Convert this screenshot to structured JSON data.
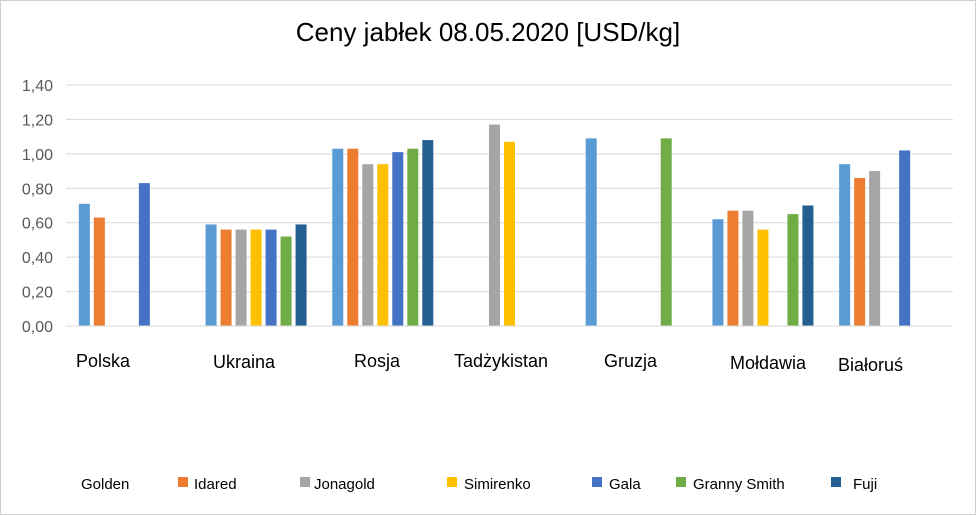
{
  "chart_data": {
    "type": "bar",
    "title": "Ceny jabłek 08.05.2020 [USD/kg]",
    "xlabel": "",
    "ylabel": "",
    "ylim": [
      0,
      1.4
    ],
    "yticks": [
      "0,00",
      "0,20",
      "0,40",
      "0,60",
      "0,80",
      "1,00",
      "1,20",
      "1,40"
    ],
    "grid": true,
    "legend_position": "bottom",
    "categories": [
      "Polska",
      "Ukraina",
      "Rosja",
      "Tadżykistan",
      "Gruzja",
      "Mołdawia",
      "Białoruś"
    ],
    "series": [
      {
        "name": "Golden",
        "color": "#5b9bd5",
        "values": [
          0.71,
          0.59,
          1.03,
          null,
          1.09,
          0.62,
          0.94
        ]
      },
      {
        "name": "Idared",
        "color": "#ed7d31",
        "values": [
          0.63,
          0.56,
          1.03,
          null,
          null,
          0.67,
          0.86
        ]
      },
      {
        "name": "Jonagold",
        "color": "#a5a5a5",
        "values": [
          null,
          0.56,
          0.94,
          1.17,
          null,
          0.67,
          0.9
        ]
      },
      {
        "name": "Simirenko",
        "color": "#ffc000",
        "values": [
          null,
          0.56,
          0.94,
          1.07,
          null,
          0.56,
          null
        ]
      },
      {
        "name": "Gala",
        "color": "#4472c4",
        "values": [
          0.83,
          0.56,
          1.01,
          null,
          null,
          null,
          1.02
        ]
      },
      {
        "name": "Granny Smith",
        "color": "#70ad47",
        "values": [
          null,
          0.52,
          1.03,
          null,
          1.09,
          0.65,
          null
        ]
      },
      {
        "name": "Fuji",
        "color": "#255e91",
        "values": [
          null,
          0.59,
          1.08,
          null,
          null,
          0.7,
          null
        ]
      }
    ]
  }
}
